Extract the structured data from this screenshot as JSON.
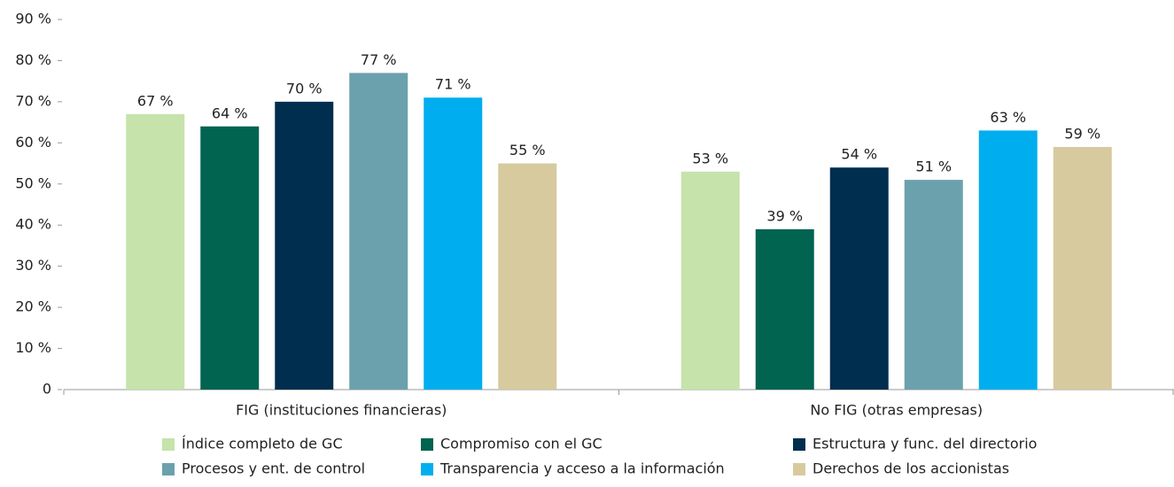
{
  "chart_data": {
    "type": "bar",
    "categories": [
      "FIG (instituciones financieras)",
      "No FIG (otras empresas)"
    ],
    "series": [
      {
        "name": "Índice completo de GC",
        "color": "#c5e3aa",
        "values": [
          67,
          53
        ],
        "value_labels": [
          "67 %",
          "53 %"
        ]
      },
      {
        "name": "Compromiso con el GC",
        "color": "#006450",
        "values": [
          64,
          39
        ],
        "value_labels": [
          "64 %",
          "39 %"
        ]
      },
      {
        "name": "Estructura y func. del directorio",
        "color": "#002e4f",
        "values": [
          70,
          54
        ],
        "value_labels": [
          "70 %",
          "54 %"
        ]
      },
      {
        "name": "Procesos y ent. de control",
        "color": "#6aa1ac",
        "values": [
          77,
          51
        ],
        "value_labels": [
          "77 %",
          "51 %"
        ]
      },
      {
        "name": "Transparencia y acceso a la información",
        "color": "#00aeef",
        "values": [
          71,
          63
        ],
        "value_labels": [
          "71 %",
          "63 %"
        ]
      },
      {
        "name": "Derechos de los accionistas",
        "color": "#d6ca9e",
        "values": [
          55,
          59
        ],
        "value_labels": [
          "55 %",
          "59 %"
        ]
      }
    ],
    "ylim": [
      0,
      90
    ],
    "yticks": [
      0,
      {
        "value": 10,
        "label": "10 %"
      },
      {
        "value": 20,
        "label": "20 %"
      },
      {
        "value": 30,
        "label": "30 %"
      },
      {
        "value": 40,
        "label": "40 %"
      },
      {
        "value": 50,
        "label": "50 %"
      },
      {
        "value": 60,
        "label": "60 %"
      },
      {
        "value": 70,
        "label": "70 %"
      },
      {
        "value": 80,
        "label": "80 %"
      },
      {
        "value": 90,
        "label": "90 %"
      }
    ],
    "grid": false,
    "legend": "bottom"
  }
}
